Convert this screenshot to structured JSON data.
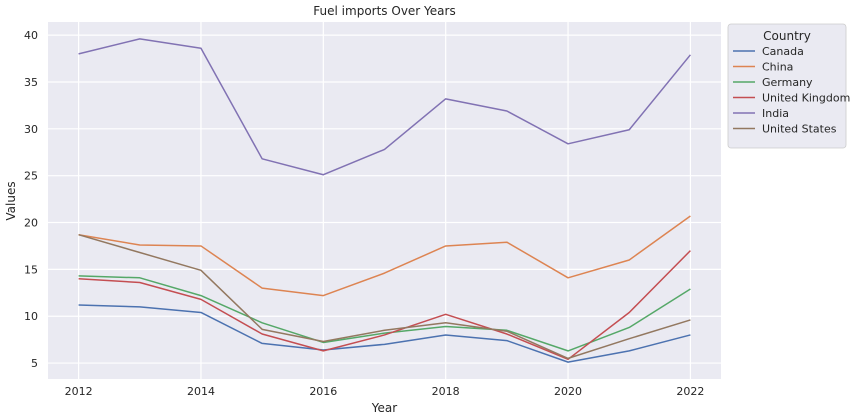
{
  "chart_data": {
    "type": "line",
    "title": "Fuel imports Over Years",
    "xlabel": "Year",
    "ylabel": "Values",
    "x": [
      2012,
      2013,
      2014,
      2015,
      2016,
      2017,
      2018,
      2019,
      2020,
      2021,
      2022
    ],
    "xticks": [
      2012,
      2014,
      2016,
      2018,
      2020,
      2022
    ],
    "yticks": [
      5,
      10,
      15,
      20,
      25,
      30,
      35,
      40
    ],
    "xlim": [
      2011.5,
      2022.5
    ],
    "ylim": [
      3.3,
      41.4
    ],
    "grid": true,
    "legend": {
      "title": "Country",
      "placement": "outside-right-top"
    },
    "series": [
      {
        "name": "Canada",
        "color": "#4c72b0",
        "values": [
          11.2,
          11.0,
          10.4,
          7.1,
          6.4,
          7.0,
          8.0,
          7.4,
          5.1,
          6.3,
          8.0
        ]
      },
      {
        "name": "China",
        "color": "#dd8452",
        "values": [
          18.7,
          17.6,
          17.5,
          13.0,
          12.2,
          14.6,
          17.5,
          17.9,
          14.1,
          16.0,
          20.7
        ]
      },
      {
        "name": "Germany",
        "color": "#55a868",
        "values": [
          14.3,
          14.1,
          12.2,
          9.3,
          7.2,
          8.2,
          8.9,
          8.5,
          6.3,
          8.8,
          12.9
        ]
      },
      {
        "name": "United Kingdom",
        "color": "#c44e52",
        "values": [
          14.0,
          13.6,
          11.8,
          8.1,
          6.3,
          8.0,
          10.2,
          8.1,
          5.4,
          10.4,
          17.0
        ]
      },
      {
        "name": "India",
        "color": "#8172b3",
        "values": [
          38.0,
          39.6,
          38.6,
          26.8,
          25.1,
          27.8,
          33.2,
          31.9,
          28.4,
          29.9,
          37.9
        ]
      },
      {
        "name": "United States",
        "color": "#937860",
        "values": [
          18.7,
          16.8,
          14.9,
          8.6,
          7.3,
          8.5,
          9.3,
          8.4,
          5.5,
          7.6,
          9.6
        ]
      }
    ]
  }
}
